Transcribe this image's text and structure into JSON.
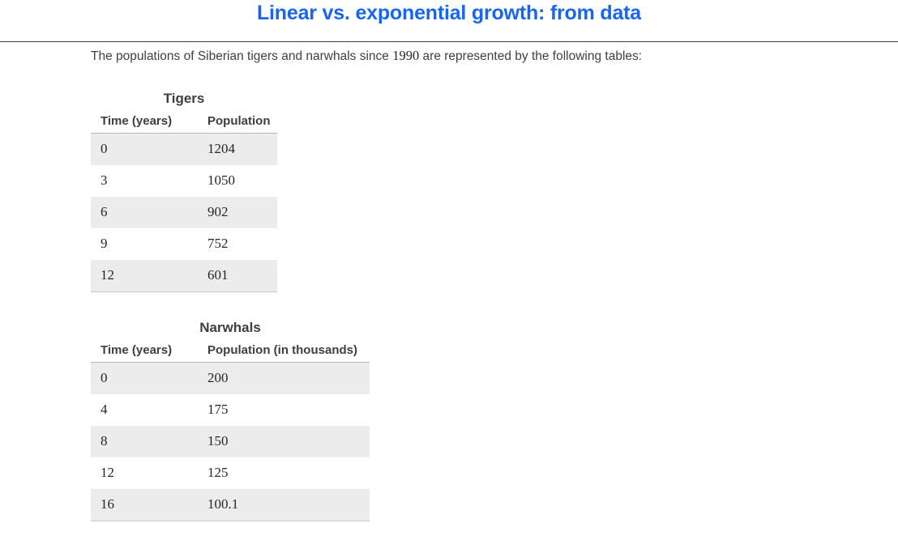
{
  "page_title": "Linear vs. exponential growth: from data",
  "intro": {
    "before": "The populations of Siberian tigers and narwhals since ",
    "year": "1990",
    "after": " are represented by the following tables:"
  },
  "tables": {
    "tigers": {
      "caption": "Tigers",
      "columns": [
        "Time (years)",
        "Population"
      ],
      "rows": [
        [
          "0",
          "1204"
        ],
        [
          "3",
          "1050"
        ],
        [
          "6",
          "902"
        ],
        [
          "9",
          "752"
        ],
        [
          "12",
          "601"
        ]
      ]
    },
    "narwhals": {
      "caption": "Narwhals",
      "columns": [
        "Time (years)",
        "Population (in thousands)"
      ],
      "rows": [
        [
          "0",
          "200"
        ],
        [
          "4",
          "175"
        ],
        [
          "8",
          "150"
        ],
        [
          "12",
          "125"
        ],
        [
          "16",
          "100.1"
        ]
      ]
    }
  },
  "colors": {
    "title_blue": "#1865f2",
    "row_stripe": "#ececec",
    "header_rule": "#3a3d40",
    "table_header_border": "#b4b8bb",
    "body_text": "#3d4149",
    "serif_text": "#24262b"
  },
  "chart_data": [
    {
      "type": "table",
      "title": "Tigers",
      "columns": [
        "Time (years)",
        "Population"
      ],
      "x": [
        0,
        3,
        6,
        9,
        12
      ],
      "values": [
        1204,
        1050,
        902,
        752,
        601
      ]
    },
    {
      "type": "table",
      "title": "Narwhals",
      "columns": [
        "Time (years)",
        "Population (in thousands)"
      ],
      "x": [
        0,
        4,
        8,
        12,
        16
      ],
      "values": [
        200,
        175,
        150,
        125,
        100.1
      ]
    }
  ]
}
